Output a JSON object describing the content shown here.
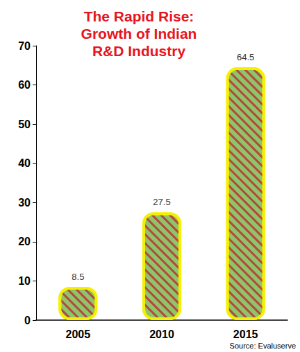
{
  "chart_data": {
    "type": "bar",
    "title": "The Rapid Rise: Growth of Indian R&D Industry",
    "categories": [
      "2005",
      "2010",
      "2015"
    ],
    "values": [
      8.5,
      27.5,
      64.5
    ],
    "color": "#8fc46a",
    "ylim": [
      0,
      70
    ],
    "yticks": [
      0,
      10,
      20,
      30,
      40,
      50,
      60,
      70
    ],
    "grid": false,
    "data_labels": true,
    "annotations": [
      "Source: Evaluserve"
    ]
  }
}
